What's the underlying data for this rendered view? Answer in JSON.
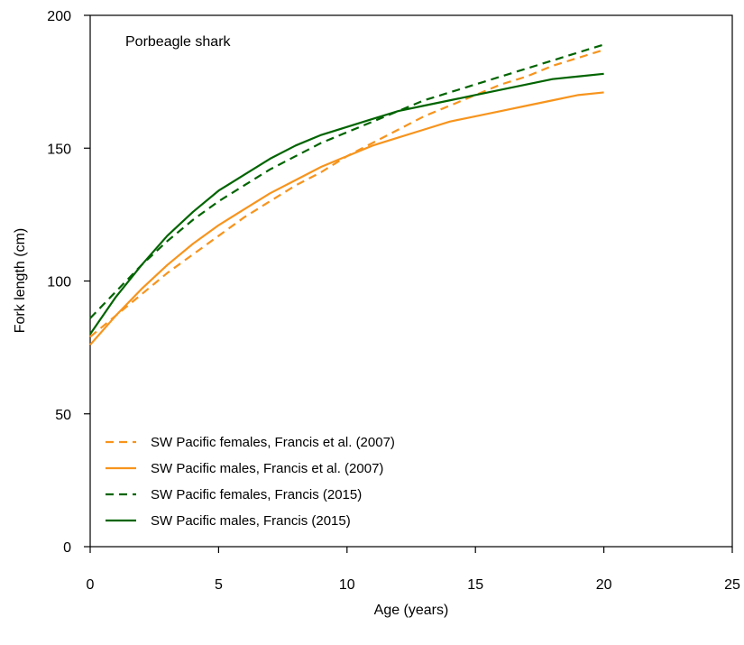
{
  "chart_data": {
    "type": "line",
    "title": "",
    "annotation": "Porbeagle shark",
    "xlabel": "Age (years)",
    "ylabel": "Fork length (cm)",
    "xlim": [
      0,
      25
    ],
    "ylim": [
      0,
      200
    ],
    "xticks": [
      0,
      5,
      10,
      15,
      20,
      25
    ],
    "yticks": [
      0,
      50,
      100,
      150,
      200
    ],
    "grid": false,
    "legend_position": "bottom-left",
    "series": [
      {
        "name": "SW Pacific females, Francis et al. (2007)",
        "color": "#f7941d",
        "dash": "dashed",
        "x": [
          0,
          1,
          2,
          3,
          4,
          5,
          6,
          7,
          8,
          9,
          10,
          11,
          12,
          13,
          14,
          15,
          16,
          17,
          18,
          19,
          20
        ],
        "y": [
          79,
          87,
          95,
          103,
          110,
          117,
          124,
          130,
          136,
          141,
          147,
          152,
          157,
          162,
          166,
          170,
          174,
          177,
          181,
          184,
          187
        ]
      },
      {
        "name": "SW Pacific males, Francis et al. (2007)",
        "color": "#f7941d",
        "dash": "solid",
        "x": [
          0,
          1,
          2,
          3,
          4,
          5,
          6,
          7,
          8,
          9,
          10,
          11,
          12,
          13,
          14,
          15,
          16,
          17,
          18,
          19,
          20
        ],
        "y": [
          76,
          87,
          97,
          106,
          114,
          121,
          127,
          133,
          138,
          143,
          147,
          151,
          154,
          157,
          160,
          162,
          164,
          166,
          168,
          170,
          171
        ]
      },
      {
        "name": "SW Pacific females, Francis (2015)",
        "color": "#006400",
        "dash": "dashed",
        "x": [
          0,
          1,
          2,
          3,
          4,
          5,
          6,
          7,
          8,
          9,
          10,
          11,
          12,
          13,
          14,
          15,
          16,
          17,
          18,
          19,
          20
        ],
        "y": [
          86,
          96,
          106,
          115,
          123,
          130,
          136,
          142,
          147,
          152,
          156,
          160,
          164,
          168,
          171,
          174,
          177,
          180,
          183,
          186,
          189
        ]
      },
      {
        "name": "SW Pacific males, Francis (2015)",
        "color": "#006400",
        "dash": "solid",
        "x": [
          0,
          1,
          2,
          3,
          4,
          5,
          6,
          7,
          8,
          9,
          10,
          11,
          12,
          13,
          14,
          15,
          16,
          17,
          18,
          19,
          20
        ],
        "y": [
          80,
          94,
          106,
          117,
          126,
          134,
          140,
          146,
          151,
          155,
          158,
          161,
          164,
          166,
          168,
          170,
          172,
          174,
          176,
          177,
          178
        ]
      }
    ]
  }
}
